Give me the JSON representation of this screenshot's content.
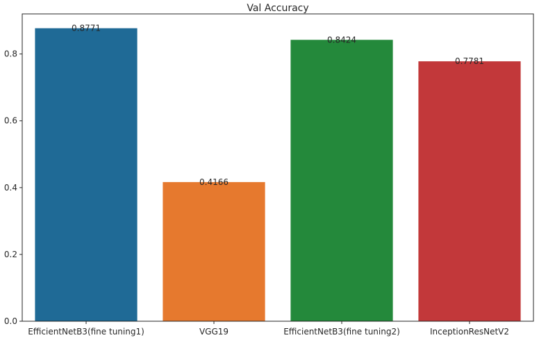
{
  "chart_data": {
    "type": "bar",
    "title": "Val Accuracy",
    "xlabel": "",
    "ylabel": "",
    "categories": [
      "EfficientNetB3(fine tuning1)",
      "VGG19",
      "EfficientNetB3(fine tuning2)",
      "InceptionResNetV2"
    ],
    "values": [
      0.8771,
      0.4166,
      0.8424,
      0.7781
    ],
    "value_labels": [
      "0.8771",
      "0.4166",
      "0.8424",
      "0.7781"
    ],
    "colors": [
      "#1f6a96",
      "#e6792e",
      "#24893b",
      "#c2383a"
    ],
    "ylim": [
      0,
      0.92
    ],
    "yticks": [
      0.0,
      0.2,
      0.4,
      0.6,
      0.8
    ],
    "ytick_labels": [
      "0.0",
      "0.2",
      "0.4",
      "0.6",
      "0.8"
    ],
    "grid": false,
    "legend": "none"
  }
}
